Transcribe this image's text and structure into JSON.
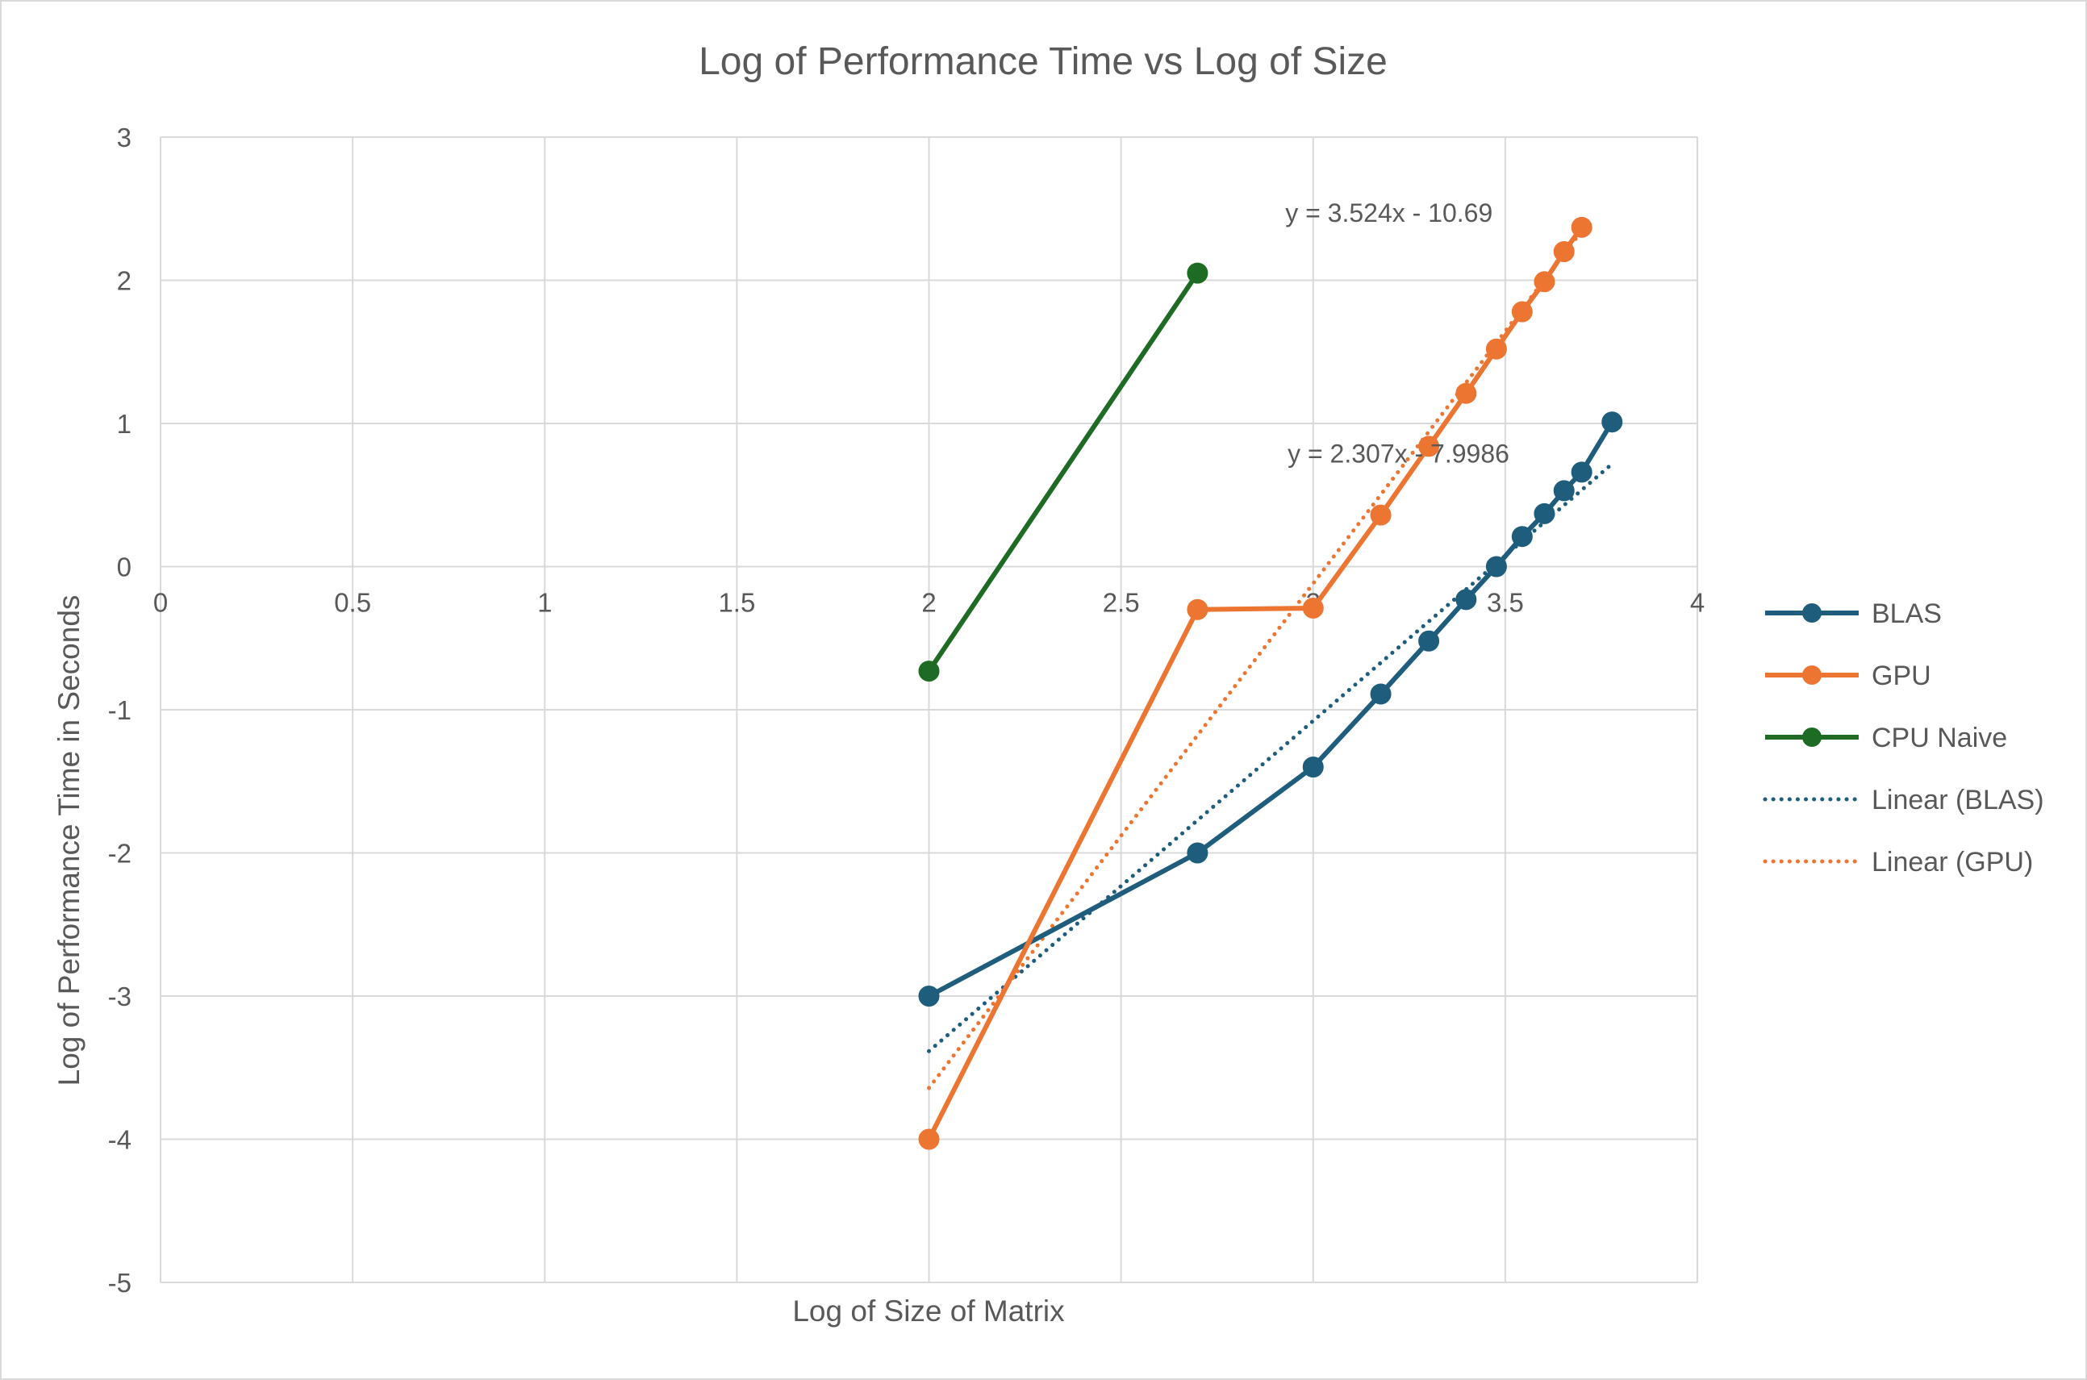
{
  "chart_data": {
    "type": "line",
    "title": "Log of Performance Time vs Log of Size",
    "xlabel": "Log of Size of Matrix",
    "ylabel": "Log of Performance Time in Seconds",
    "xlim": [
      0,
      4
    ],
    "ylim": [
      -5,
      3
    ],
    "xticks": [
      "0",
      "0.5",
      "1",
      "1.5",
      "2",
      "2.5",
      "3",
      "3.5",
      "4"
    ],
    "yticks": [
      "3",
      "2",
      "1",
      "0",
      "-1",
      "-2",
      "-3",
      "-4",
      "-5"
    ],
    "grid": true,
    "legend_position": "right",
    "series": [
      {
        "name": "BLAS",
        "style": "solid",
        "color": "#1F5D7D",
        "x": [
          2,
          2.699,
          3,
          3.176,
          3.301,
          3.398,
          3.477,
          3.544,
          3.602,
          3.653,
          3.699,
          3.778
        ],
        "y": [
          -3,
          -2,
          -1.4,
          -0.89,
          -0.52,
          -0.23,
          0.0,
          0.21,
          0.37,
          0.53,
          0.66,
          1.01
        ]
      },
      {
        "name": "GPU",
        "style": "solid",
        "color": "#ED7532",
        "x": [
          2,
          2.699,
          3,
          3.176,
          3.301,
          3.398,
          3.477,
          3.544,
          3.602,
          3.653,
          3.699
        ],
        "y": [
          -4,
          -0.3,
          -0.29,
          0.36,
          0.84,
          1.21,
          1.52,
          1.78,
          1.99,
          2.2,
          2.37
        ]
      },
      {
        "name": "CPU Naive",
        "style": "solid",
        "color": "#1E6B24",
        "x": [
          2,
          2.699
        ],
        "y": [
          -0.73,
          2.05
        ]
      },
      {
        "name": "Linear (BLAS)",
        "style": "dotted",
        "color": "#1F5D7D",
        "slope": 2.307,
        "intercept": -7.9986,
        "x_range": [
          2,
          3.778
        ],
        "equation": "y = 2.307x - 7.9986"
      },
      {
        "name": "Linear (GPU)",
        "style": "dotted",
        "color": "#ED7532",
        "slope": 3.524,
        "intercept": -10.69,
        "x_range": [
          2,
          3.699
        ],
        "equation": "y = 3.524x - 10.69"
      }
    ]
  }
}
